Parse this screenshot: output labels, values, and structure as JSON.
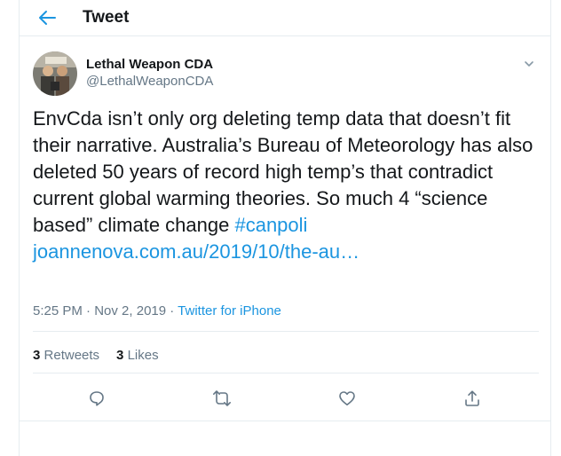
{
  "header": {
    "title": "Tweet"
  },
  "author": {
    "name": "Lethal Weapon CDA",
    "handle": "@LethalWeaponCDA"
  },
  "tweet": {
    "text_plain": "EnvCda isn’t only org deleting temp data that doesn’t fit their narrative.  Australia’s Bureau of Meteorology has also deleted 50 years of record high temp’s that contradict current global warming theories. So much 4 “science based” climate change ",
    "hashtag": "#canpoli",
    "link": "joannenova.com.au/2019/10/the-au…"
  },
  "meta": {
    "time": "5:25 PM",
    "dot1": " · ",
    "date": "Nov 2, 2019",
    "dot2": " · ",
    "source": "Twitter for iPhone"
  },
  "stats": {
    "retweets_count": "3",
    "retweets_label": "Retweets",
    "likes_count": "3",
    "likes_label": "Likes"
  },
  "icons": {
    "back": "arrow-left-icon",
    "caret": "chevron-down-icon",
    "reply": "reply-icon",
    "retweet": "retweet-icon",
    "like": "heart-icon",
    "share": "share-icon"
  },
  "colors": {
    "accent": "#1b95e0",
    "secondary_text": "#657786",
    "primary_text": "#14171a",
    "border": "#e6ecf0"
  }
}
